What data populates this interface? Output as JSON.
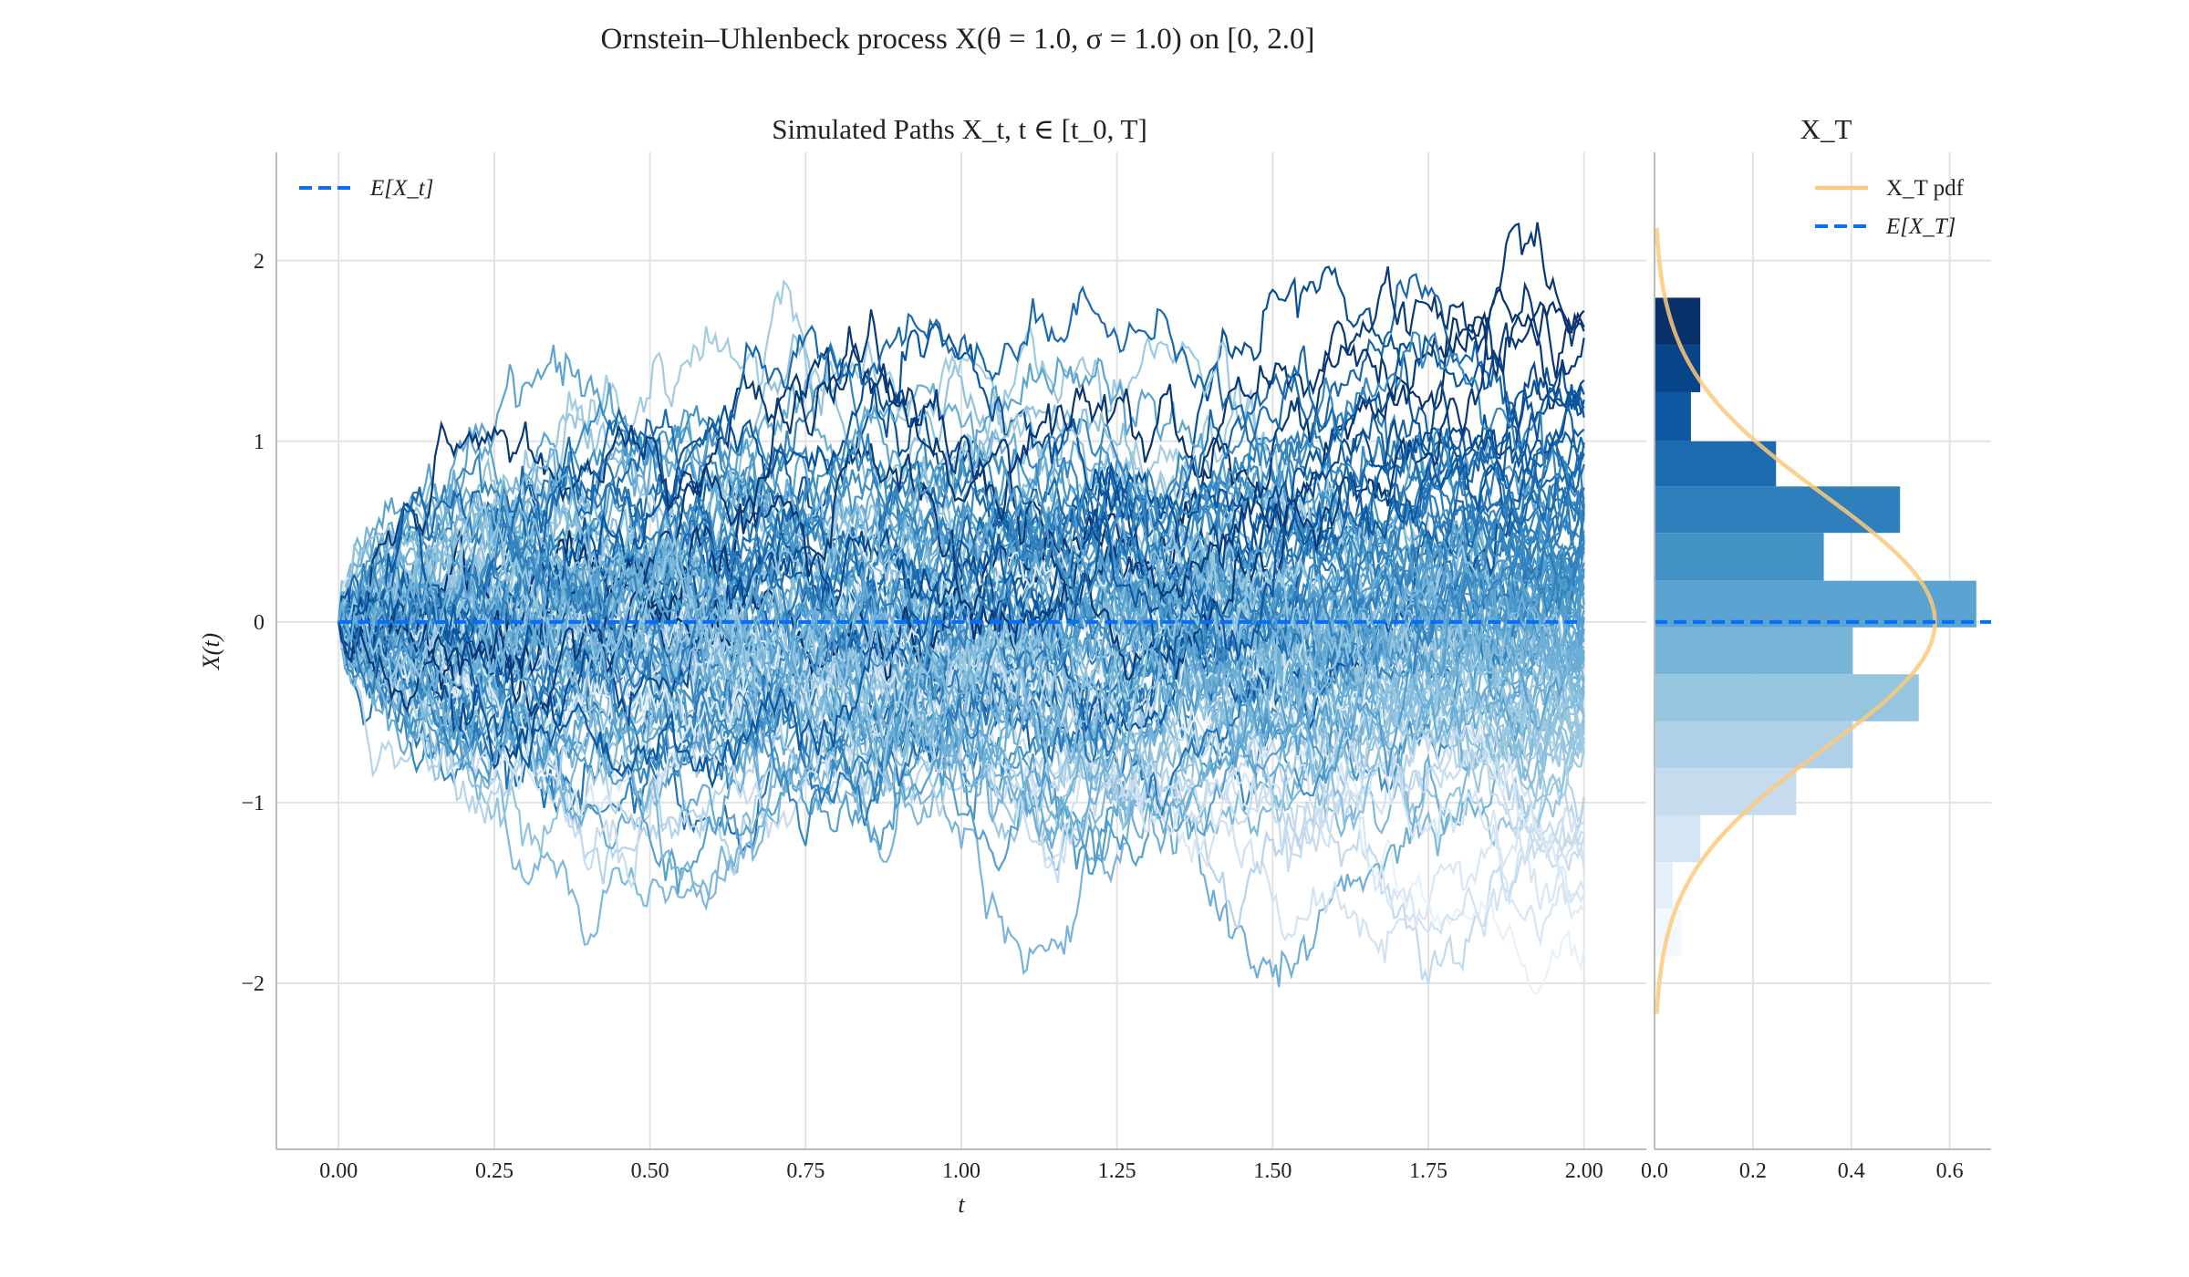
{
  "title": "Ornstein–Uhlenbeck process X(θ = 1.0, σ = 1.0) on [0, 2.0]",
  "chart_data": [
    {
      "type": "line",
      "title": "Simulated Paths X_t, t ∈ [t_0, T]",
      "xlabel": "t",
      "ylabel": "X(t)",
      "xlim": [
        -0.1,
        2.1
      ],
      "ylim": [
        -2.92,
        2.6
      ],
      "xticks": [
        "0.00",
        "0.25",
        "0.50",
        "0.75",
        "1.00",
        "1.25",
        "1.50",
        "1.75",
        "2.00"
      ],
      "xtick_values": [
        0,
        0.25,
        0.5,
        0.75,
        1.0,
        1.25,
        1.5,
        1.75,
        2.0
      ],
      "yticks": [
        "−2",
        "−1",
        "0",
        "1",
        "2"
      ],
      "ytick_values": [
        -2,
        -1,
        0,
        1,
        2
      ],
      "grid": true,
      "process": {
        "theta": 1.0,
        "sigma": 1.0,
        "x0": 0,
        "t0": 0,
        "T": 2.0
      },
      "colormap": "Blues",
      "series": [
        {
          "name": "E[X_t]",
          "style": "dashed",
          "color": "#0a6ef5",
          "x": [
            0,
            2.0
          ],
          "y": [
            0,
            0
          ]
        }
      ],
      "legend": {
        "position": "top-left",
        "entries": [
          "E[X_t]"
        ]
      }
    },
    {
      "type": "bar",
      "orientation": "horizontal",
      "title": "X_T",
      "xlim": [
        0,
        0.684
      ],
      "ylim": [
        -2.92,
        2.6
      ],
      "xticks": [
        "0.0",
        "0.2",
        "0.4",
        "0.6"
      ],
      "xtick_values": [
        0,
        0.2,
        0.4,
        0.6
      ],
      "grid": true,
      "bin_edges": [
        1.795,
        1.534,
        1.272,
        1.0,
        0.75,
        0.493,
        0.228,
        -0.03,
        -0.29,
        -0.55,
        -0.81,
        -1.07,
        -1.33,
        -1.59,
        -1.85
      ],
      "density": [
        0.093,
        0.093,
        0.074,
        0.247,
        0.499,
        0.344,
        0.654,
        0.403,
        0.537,
        0.403,
        0.288,
        0.093,
        0.037,
        0.055
      ],
      "pdf": {
        "name": "X_T pdf",
        "mean": 0,
        "std": 0.7,
        "range": [
          -2.17,
          2.18
        ],
        "color": "#fdc97a"
      },
      "mean_line": {
        "name": "E[X_T]",
        "value": 0,
        "color": "#0a6ef5"
      },
      "legend": {
        "position": "top-right",
        "entries": [
          "X_T pdf",
          "E[X_T]"
        ]
      }
    }
  ]
}
